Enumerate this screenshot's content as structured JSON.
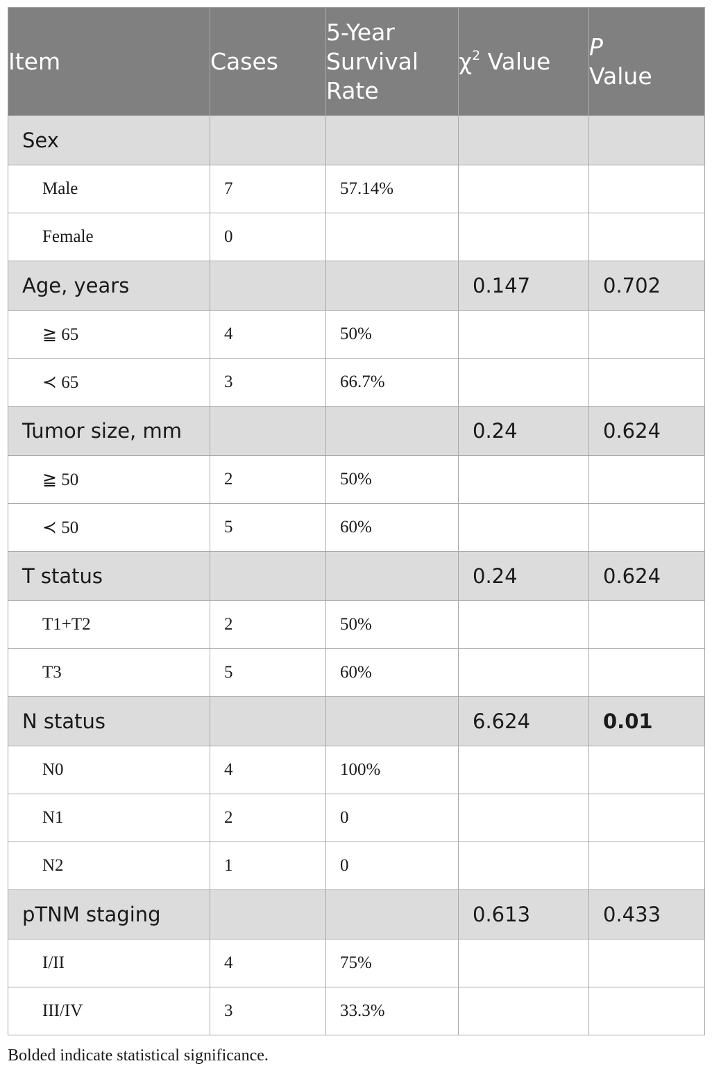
{
  "table": {
    "headers": {
      "item": "Item",
      "cases": "Cases",
      "survival": "5-Year Survival Rate",
      "chi_symbol": "χ",
      "chi_exp": "2",
      "chi_label": "Value",
      "p_symbol": "P",
      "p_label": "Value"
    },
    "rows": [
      {
        "type": "group",
        "label": "Sex",
        "chi": "",
        "p": ""
      },
      {
        "type": "item",
        "label": "Male",
        "cases": "7",
        "rate": "57.14%"
      },
      {
        "type": "item",
        "label": "Female",
        "cases": "0",
        "rate": ""
      },
      {
        "type": "group",
        "label": "Age, years",
        "chi": "0.147",
        "p": "0.702"
      },
      {
        "type": "item",
        "label": "≧ 65",
        "cases": "4",
        "rate": "50%"
      },
      {
        "type": "item",
        "label": "≺ 65",
        "cases": "3",
        "rate": "66.7%"
      },
      {
        "type": "group",
        "label": "Tumor size, mm",
        "chi": "0.24",
        "p": "0.624"
      },
      {
        "type": "item",
        "label": "≧ 50",
        "cases": "2",
        "rate": "50%"
      },
      {
        "type": "item",
        "label": "≺ 50",
        "cases": "5",
        "rate": "60%"
      },
      {
        "type": "group",
        "label": "T status",
        "chi": "0.24",
        "p": "0.624"
      },
      {
        "type": "item",
        "label": "T1+T2",
        "cases": "2",
        "rate": "50%"
      },
      {
        "type": "item",
        "label": "T3",
        "cases": "5",
        "rate": "60%"
      },
      {
        "type": "group",
        "label": "N status",
        "chi": "6.624",
        "p": "0.01",
        "p_bold": true
      },
      {
        "type": "item",
        "label": "N0",
        "cases": "4",
        "rate": "100%"
      },
      {
        "type": "item",
        "label": "N1",
        "cases": "2",
        "rate": "0"
      },
      {
        "type": "item",
        "label": "N2",
        "cases": "1",
        "rate": "0"
      },
      {
        "type": "group",
        "label": "pTNM staging",
        "chi": "0.613",
        "p": "0.433"
      },
      {
        "type": "item",
        "label": "I/II",
        "cases": "4",
        "rate": "75%"
      },
      {
        "type": "item",
        "label": "III/IV",
        "cases": "3",
        "rate": "33.3%"
      }
    ]
  },
  "footnote": "Bolded indicate statistical significance."
}
